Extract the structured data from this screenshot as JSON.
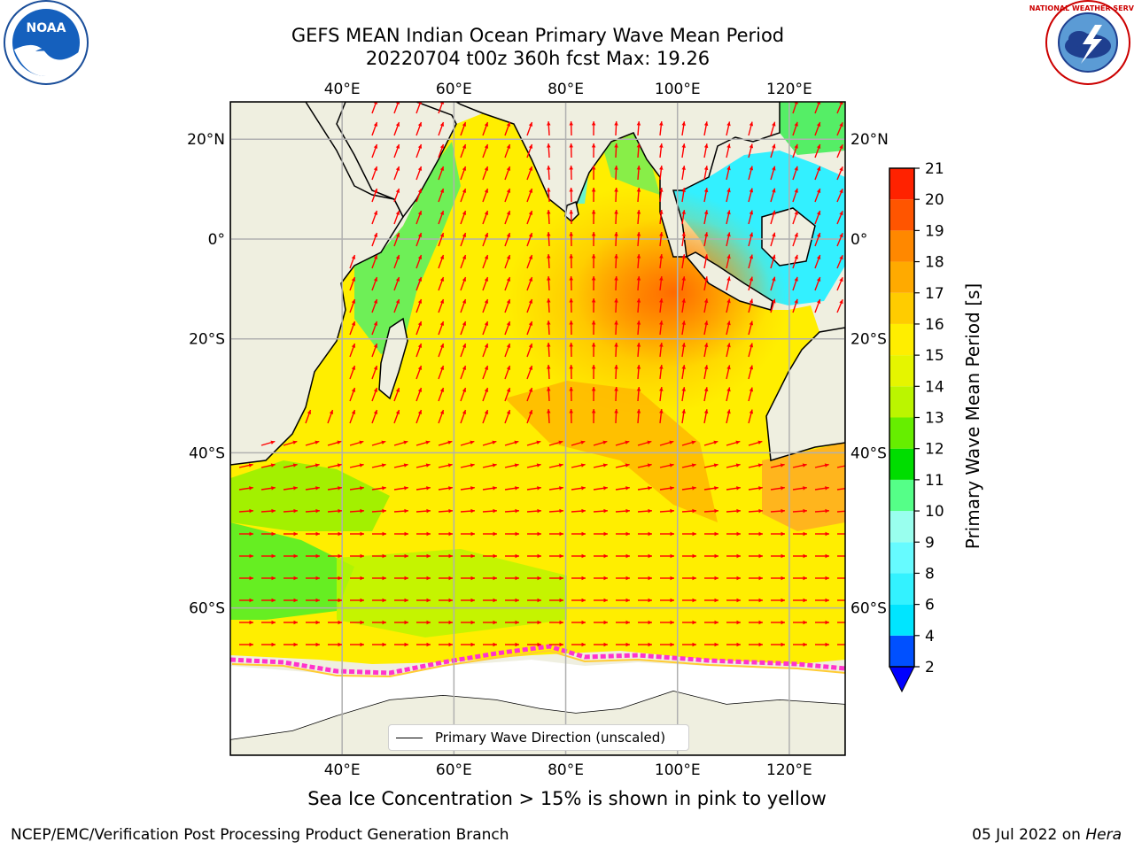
{
  "title": {
    "line1": "GEFS MEAN Indian Ocean Primary Wave Mean Period",
    "line2": "20220704 t00z 360h fcst   Max: 19.26"
  },
  "logos": {
    "noaa_text": "NOAA",
    "nws_text": "NATIONAL WEATHER SERVICE"
  },
  "axes": {
    "lon_ticks": [
      "40°E",
      "60°E",
      "80°E",
      "100°E",
      "120°E"
    ],
    "lat_ticks": [
      "20°N",
      "0°",
      "20°S",
      "40°S",
      "60°S"
    ],
    "lon_range": [
      20,
      130
    ],
    "lat_range": [
      -72,
      27
    ]
  },
  "colorbar": {
    "label": "Primary Wave Mean Period [s]",
    "ticks": [
      "2",
      "4",
      "6",
      "8",
      "9",
      "10",
      "11",
      "12",
      "13",
      "14",
      "15",
      "16",
      "17",
      "18",
      "19",
      "20",
      "21"
    ],
    "colors": [
      "#0050ff",
      "#00e5ff",
      "#33f2ff",
      "#66fbff",
      "#99ffee",
      "#55ff88",
      "#00dd00",
      "#66ee00",
      "#bbf500",
      "#e5f500",
      "#ffee00",
      "#ffcc00",
      "#ffaa00",
      "#ff8800",
      "#ff5500",
      "#ff2200"
    ],
    "extend_color": "#0000ff"
  },
  "legend": {
    "label": "Primary Wave Direction (unscaled)"
  },
  "caption": "Sea Ice Concentration > 15% is shown in pink to yellow",
  "footer": {
    "left": "NCEP/EMC/Verification Post Processing Product Generation Branch",
    "date": "05 Jul 2022 on",
    "host": "Hera"
  },
  "colors": {
    "land": "#efefe0",
    "arrow": "#ff0000",
    "ice": "#ff33cc"
  }
}
